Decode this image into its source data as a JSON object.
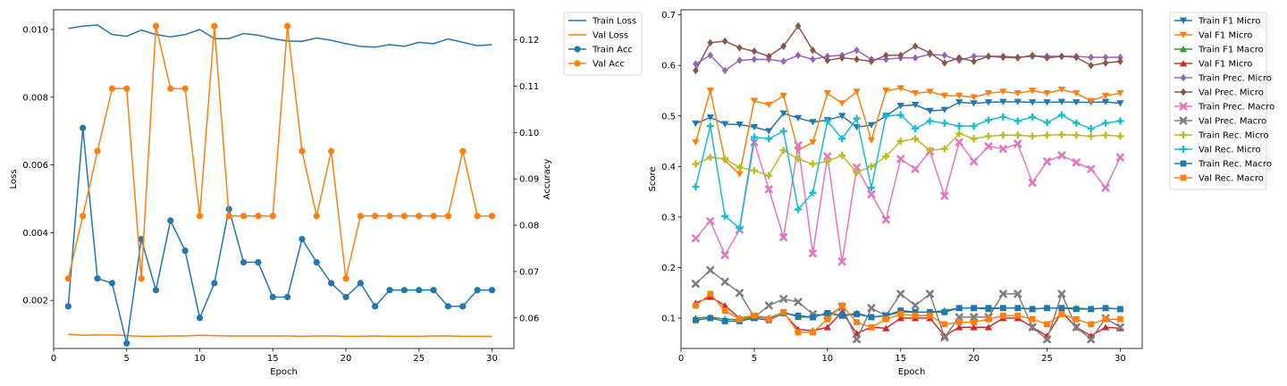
{
  "chart_data": [
    {
      "type": "line",
      "xlabel": "Epoch",
      "ylabel_left": "Loss",
      "ylabel_right": "Accuracy",
      "x": [
        1,
        2,
        3,
        4,
        5,
        6,
        7,
        8,
        9,
        10,
        11,
        12,
        13,
        14,
        15,
        16,
        17,
        18,
        19,
        20,
        21,
        22,
        23,
        24,
        25,
        26,
        27,
        28,
        29,
        30
      ],
      "xlim": [
        0,
        31.5
      ],
      "xticks": [
        0,
        5,
        10,
        15,
        20,
        25,
        30
      ],
      "ylim_left": [
        0.00058,
        0.01058
      ],
      "yticks_left": [
        0.002,
        0.004,
        0.006,
        0.008,
        0.01
      ],
      "ytick_labels_left": [
        "0.002",
        "0.004",
        "0.006",
        "0.008",
        "0.010"
      ],
      "ylim_right": [
        0.0534,
        0.1265
      ],
      "yticks_right": [
        0.06,
        0.07,
        0.08,
        0.09,
        0.1,
        0.11,
        0.12
      ],
      "ytick_labels_right": [
        "0.06",
        "0.07",
        "0.08",
        "0.09",
        "0.10",
        "0.11",
        "0.12"
      ],
      "legend_position": "outside-right-top",
      "series": [
        {
          "name": "Train Loss",
          "axis": "left",
          "color": "#1f77b4",
          "marker": "none",
          "values": [
            0.01003,
            0.0101,
            0.01013,
            0.00985,
            0.0098,
            0.00998,
            0.00985,
            0.00978,
            0.00985,
            0.01,
            0.00973,
            0.00973,
            0.00988,
            0.00983,
            0.00973,
            0.00966,
            0.00965,
            0.00975,
            0.00968,
            0.00958,
            0.0095,
            0.00948,
            0.00955,
            0.0095,
            0.00962,
            0.00958,
            0.00972,
            0.00962,
            0.00952,
            0.00955
          ]
        },
        {
          "name": "Val Loss",
          "axis": "left",
          "color": "#ff7f0e",
          "marker": "none",
          "values": [
            0.001,
            0.00097,
            0.00098,
            0.00098,
            0.00096,
            0.00094,
            0.00094,
            0.00095,
            0.00095,
            0.00097,
            0.00096,
            0.00095,
            0.00095,
            0.00095,
            0.00095,
            0.00095,
            0.00094,
            0.00095,
            0.00095,
            0.00094,
            0.00094,
            0.00095,
            0.00094,
            0.00094,
            0.00094,
            0.00095,
            0.00095,
            0.00094,
            0.00094,
            0.00094
          ]
        },
        {
          "name": "Train Acc",
          "axis": "right",
          "color": "#1f77b4",
          "marker": "circle",
          "values": [
            0.0625,
            0.101,
            0.0685,
            0.0675,
            0.0545,
            0.077,
            0.066,
            0.081,
            0.0745,
            0.06,
            0.0675,
            0.0835,
            0.072,
            0.072,
            0.0645,
            0.0645,
            0.077,
            0.072,
            0.0675,
            0.0645,
            0.0675,
            0.0625,
            0.066,
            0.066,
            0.066,
            0.066,
            0.0625,
            0.0625,
            0.066,
            0.066
          ]
        },
        {
          "name": "Val Acc",
          "axis": "right",
          "color": "#ff7f0e",
          "marker": "circle",
          "values": [
            0.0685,
            0.082,
            0.096,
            0.1095,
            0.1095,
            0.0685,
            0.123,
            0.1095,
            0.1095,
            0.082,
            0.123,
            0.082,
            0.082,
            0.082,
            0.082,
            0.123,
            0.096,
            0.082,
            0.096,
            0.0685,
            0.082,
            0.082,
            0.082,
            0.082,
            0.082,
            0.082,
            0.082,
            0.096,
            0.082,
            0.082
          ]
        }
      ]
    },
    {
      "type": "line",
      "xlabel": "Epoch",
      "ylabel": "Score",
      "x": [
        1,
        2,
        3,
        4,
        5,
        6,
        7,
        8,
        9,
        10,
        11,
        12,
        13,
        14,
        15,
        16,
        17,
        18,
        19,
        20,
        21,
        22,
        23,
        24,
        25,
        26,
        27,
        28,
        29,
        30
      ],
      "xlim": [
        0,
        31.5
      ],
      "xticks": [
        0,
        5,
        10,
        15,
        20,
        25,
        30
      ],
      "ylim": [
        0.04,
        0.71
      ],
      "yticks": [
        0.1,
        0.2,
        0.3,
        0.4,
        0.5,
        0.6,
        0.7
      ],
      "ytick_labels": [
        "0.1",
        "0.2",
        "0.3",
        "0.4",
        "0.5",
        "0.6",
        "0.7"
      ],
      "legend_position": "outside-right-top",
      "series": [
        {
          "name": "Train F1 Micro",
          "color": "#1f77b4",
          "marker": "tri-down",
          "values": [
            0.485,
            0.497,
            0.484,
            0.483,
            0.478,
            0.47,
            0.505,
            0.496,
            0.488,
            0.492,
            0.5,
            0.478,
            0.482,
            0.5,
            0.52,
            0.522,
            0.51,
            0.512,
            0.527,
            0.525,
            0.527,
            0.528,
            0.528,
            0.527,
            0.527,
            0.528,
            0.527,
            0.527,
            0.528,
            0.525
          ]
        },
        {
          "name": "Val F1 Micro",
          "color": "#ff7f0e",
          "marker": "tri-down",
          "values": [
            0.448,
            0.55,
            0.412,
            0.385,
            0.53,
            0.522,
            0.54,
            0.432,
            0.448,
            0.545,
            0.525,
            0.548,
            0.452,
            0.55,
            0.555,
            0.545,
            0.548,
            0.54,
            0.54,
            0.537,
            0.545,
            0.548,
            0.545,
            0.55,
            0.545,
            0.552,
            0.545,
            0.53,
            0.54,
            0.545
          ]
        },
        {
          "name": "Train F1 Macro",
          "color": "#2ca02c",
          "marker": "tri-up",
          "values": [
            0.1,
            0.102,
            0.098,
            0.097,
            0.102,
            0.1,
            0.112,
            0.102,
            0.102,
            0.11,
            0.105,
            0.11,
            0.102,
            0.105,
            0.112,
            0.112,
            0.112,
            0.115,
            0.12,
            0.12,
            0.118,
            0.12,
            0.12,
            0.118,
            0.12,
            0.12,
            0.12,
            0.118,
            0.12,
            0.118
          ]
        },
        {
          "name": "Val F1 Micro",
          "color": "#d62728",
          "marker": "tri-up",
          "values": [
            0.13,
            0.142,
            0.125,
            0.1,
            0.105,
            0.1,
            0.11,
            0.078,
            0.075,
            0.082,
            0.112,
            0.07,
            0.082,
            0.08,
            0.1,
            0.1,
            0.1,
            0.065,
            0.082,
            0.082,
            0.082,
            0.1,
            0.1,
            0.082,
            0.065,
            0.112,
            0.082,
            0.065,
            0.082,
            0.08
          ]
        },
        {
          "name": "Train Prec. Micro",
          "color": "#9467bd",
          "marker": "diamond",
          "values": [
            0.603,
            0.62,
            0.59,
            0.61,
            0.612,
            0.612,
            0.608,
            0.62,
            0.612,
            0.618,
            0.62,
            0.63,
            0.612,
            0.612,
            0.615,
            0.615,
            0.622,
            0.62,
            0.61,
            0.618,
            0.618,
            0.618,
            0.616,
            0.618,
            0.618,
            0.618,
            0.618,
            0.616,
            0.616,
            0.616
          ]
        },
        {
          "name": "Val Prec. Micro",
          "color": "#8c564b",
          "marker": "diamond",
          "values": [
            0.59,
            0.645,
            0.648,
            0.635,
            0.628,
            0.618,
            0.638,
            0.678,
            0.63,
            0.61,
            0.615,
            0.612,
            0.608,
            0.62,
            0.62,
            0.638,
            0.625,
            0.605,
            0.615,
            0.608,
            0.618,
            0.616,
            0.615,
            0.62,
            0.615,
            0.618,
            0.616,
            0.6,
            0.605,
            0.608
          ]
        },
        {
          "name": "Train Prec. Macro",
          "color": "#e377c2",
          "marker": "x",
          "values": [
            0.258,
            0.292,
            0.225,
            0.275,
            0.448,
            0.355,
            0.26,
            0.442,
            0.228,
            0.42,
            0.212,
            0.398,
            0.345,
            0.295,
            0.415,
            0.395,
            0.43,
            0.342,
            0.448,
            0.41,
            0.44,
            0.435,
            0.445,
            0.368,
            0.41,
            0.422,
            0.408,
            0.395,
            0.358,
            0.418
          ]
        },
        {
          "name": "Val Prec. Macro",
          "color": "#7f7f7f",
          "marker": "x",
          "values": [
            0.168,
            0.195,
            0.172,
            0.15,
            0.102,
            0.125,
            0.138,
            0.132,
            0.108,
            0.105,
            0.122,
            0.058,
            0.12,
            0.105,
            0.148,
            0.125,
            0.148,
            0.062,
            0.102,
            0.102,
            0.102,
            0.148,
            0.148,
            0.082,
            0.058,
            0.148,
            0.082,
            0.058,
            0.1,
            0.082
          ]
        },
        {
          "name": "Train Rec. Micro",
          "color": "#bcbd22",
          "marker": "plus",
          "values": [
            0.405,
            0.418,
            0.415,
            0.398,
            0.392,
            0.382,
            0.432,
            0.415,
            0.405,
            0.41,
            0.422,
            0.388,
            0.4,
            0.42,
            0.45,
            0.455,
            0.432,
            0.435,
            0.465,
            0.455,
            0.46,
            0.462,
            0.462,
            0.46,
            0.462,
            0.463,
            0.462,
            0.46,
            0.462,
            0.46
          ]
        },
        {
          "name": "Val Rec. Micro",
          "color": "#17becf",
          "marker": "plus",
          "values": [
            0.36,
            0.48,
            0.302,
            0.278,
            0.458,
            0.455,
            0.47,
            0.315,
            0.348,
            0.49,
            0.455,
            0.495,
            0.358,
            0.5,
            0.502,
            0.475,
            0.49,
            0.486,
            0.48,
            0.48,
            0.492,
            0.498,
            0.49,
            0.498,
            0.487,
            0.502,
            0.486,
            0.475,
            0.486,
            0.49
          ]
        },
        {
          "name": "Train Rec. Macro",
          "color": "#1f77b4",
          "marker": "square",
          "values": [
            0.096,
            0.1,
            0.094,
            0.094,
            0.1,
            0.096,
            0.11,
            0.105,
            0.102,
            0.11,
            0.105,
            0.108,
            0.102,
            0.105,
            0.115,
            0.112,
            0.112,
            0.112,
            0.12,
            0.12,
            0.12,
            0.12,
            0.12,
            0.118,
            0.12,
            0.12,
            0.118,
            0.118,
            0.12,
            0.118
          ]
        },
        {
          "name": "Val Rec. Macro",
          "color": "#ff7f0e",
          "marker": "square",
          "values": [
            0.125,
            0.148,
            0.115,
            0.098,
            0.105,
            0.098,
            0.112,
            0.072,
            0.072,
            0.098,
            0.125,
            0.092,
            0.082,
            0.098,
            0.108,
            0.105,
            0.105,
            0.088,
            0.092,
            0.092,
            0.098,
            0.105,
            0.105,
            0.098,
            0.088,
            0.108,
            0.098,
            0.088,
            0.098,
            0.098
          ]
        }
      ]
    }
  ]
}
